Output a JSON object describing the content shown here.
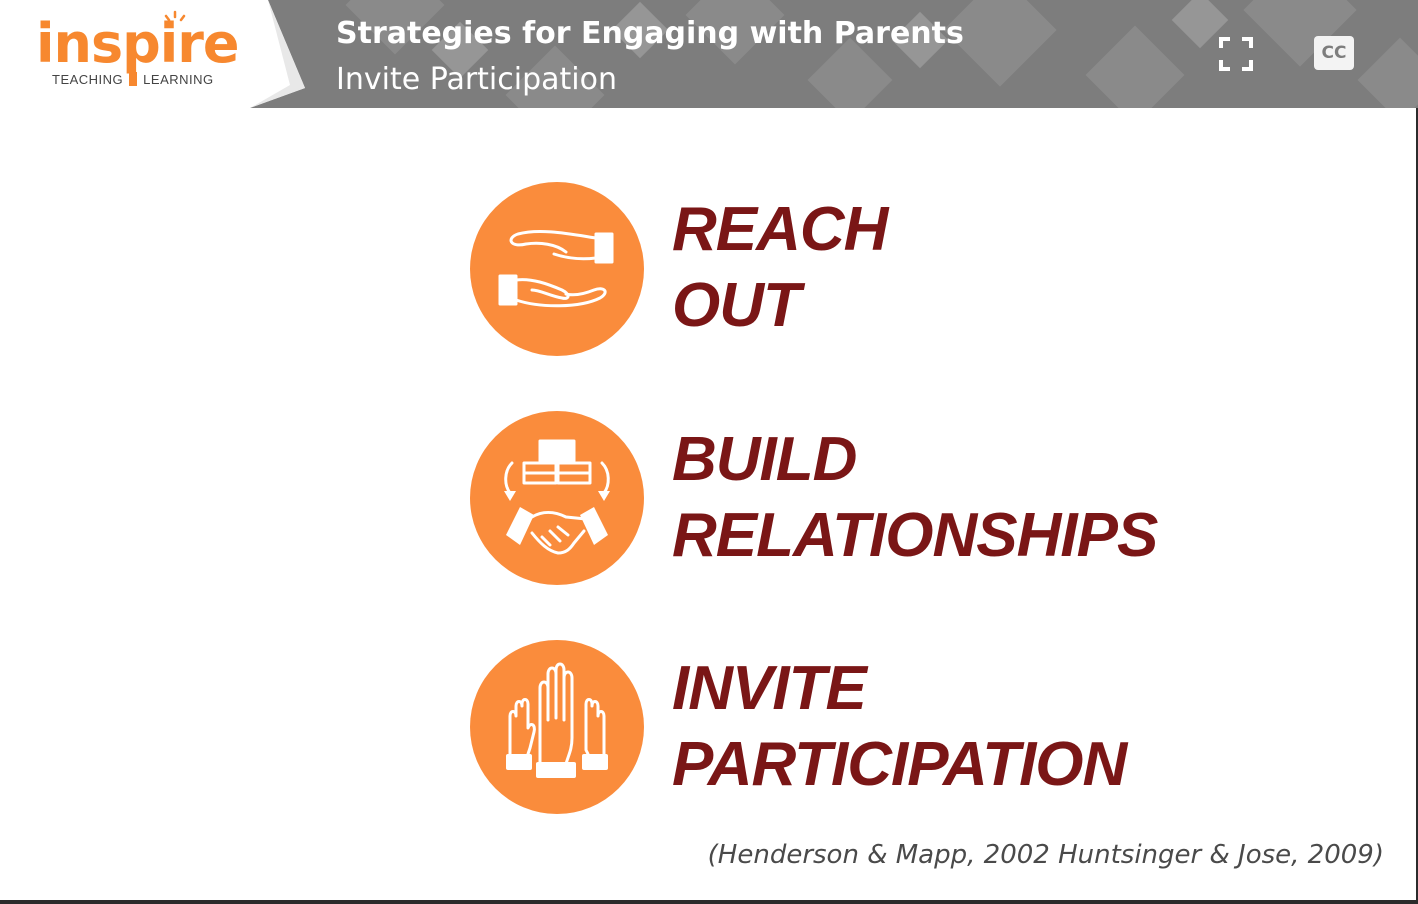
{
  "header": {
    "logo": {
      "word": "inspire",
      "left_tag": "TEACHING",
      "right_tag": "LEARNING"
    },
    "title": "Strategies for Engaging with Parents",
    "subtitle": "Invite Participation",
    "cc_label": "CC"
  },
  "items": [
    {
      "line1": "REACH",
      "line2": "OUT",
      "icon": "helping-hands-icon"
    },
    {
      "line1": "BUILD",
      "line2": "RELATIONSHIPS",
      "icon": "handshake-blocks-icon"
    },
    {
      "line1": "INVITE",
      "line2": "PARTICIPATION",
      "icon": "raised-hands-icon"
    }
  ],
  "citation": "(Henderson & Mapp, 2002 Huntsinger & Jose, 2009)",
  "colors": {
    "header_bg": "#7d7d7d",
    "accent_orange": "#fa8c3c",
    "heading_maroon": "#7a1616",
    "logo_orange": "#f7882f"
  }
}
